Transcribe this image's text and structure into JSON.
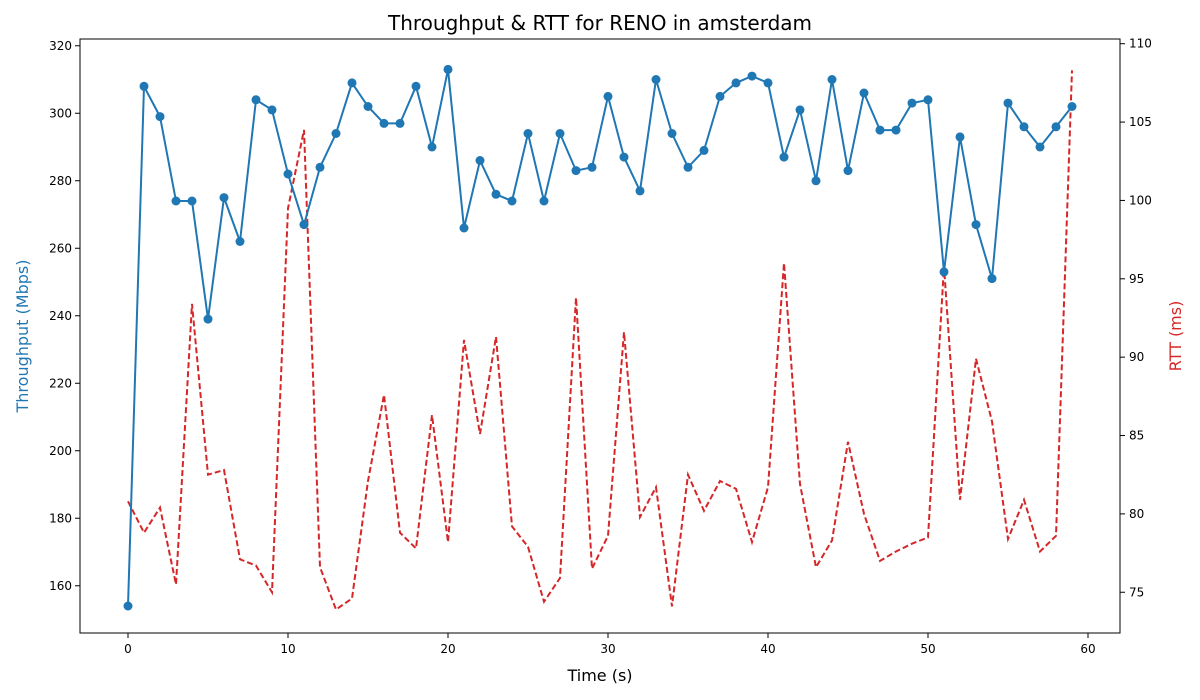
{
  "chart_data": {
    "type": "line",
    "title": "Throughput & RTT for RENO in amsterdam",
    "xlabel": "Time (s)",
    "ylabel_left": "Throughput (Mbps)",
    "ylabel_right": "RTT (ms)",
    "xlim": [
      -3,
      62
    ],
    "ylim_left": [
      146,
      322
    ],
    "ylim_right": [
      72.4,
      110.3
    ],
    "xticks": [
      "0",
      "10",
      "20",
      "30",
      "40",
      "50",
      "60"
    ],
    "yticks_left": [
      "160",
      "180",
      "200",
      "220",
      "240",
      "260",
      "280",
      "300",
      "320"
    ],
    "yticks_right": [
      "75",
      "80",
      "85",
      "90",
      "95",
      "100",
      "105",
      "110"
    ],
    "grid": false,
    "colors": {
      "throughput": "#1f77b4",
      "rtt": "#d62728"
    },
    "x": [
      0,
      1,
      2,
      3,
      4,
      5,
      6,
      7,
      8,
      9,
      10,
      11,
      12,
      13,
      14,
      15,
      16,
      17,
      18,
      19,
      20,
      21,
      22,
      23,
      24,
      25,
      26,
      27,
      28,
      29,
      30,
      31,
      32,
      33,
      34,
      35,
      36,
      37,
      38,
      39,
      40,
      41,
      42,
      43,
      44,
      45,
      46,
      47,
      48,
      49,
      50,
      51,
      52,
      53,
      54,
      55,
      56,
      57,
      58,
      59
    ],
    "series": [
      {
        "axis": "left",
        "style": "solid-markers",
        "values": [
          154,
          308,
          299,
          274,
          274,
          239,
          275,
          262,
          304,
          301,
          282,
          267,
          284,
          294,
          309,
          302,
          297,
          297,
          308,
          290,
          313,
          266,
          286,
          276,
          274,
          294,
          274,
          294,
          283,
          284,
          305,
          287,
          277,
          310,
          294,
          284,
          289,
          305,
          309,
          311,
          309,
          287,
          301,
          280,
          310,
          283,
          306,
          295,
          295,
          303,
          304,
          253,
          293,
          267,
          251,
          303,
          296,
          290,
          296,
          302
        ]
      },
      {
        "axis": "right",
        "style": "dashed",
        "values": [
          80.8,
          78.8,
          80.4,
          75.5,
          93.4,
          82.5,
          82.8,
          77.1,
          76.7,
          75.0,
          99.5,
          104.5,
          76.6,
          73.9,
          74.6,
          82.1,
          87.6,
          78.8,
          77.8,
          86.3,
          78.2,
          91.1,
          85.1,
          91.3,
          79.2,
          77.9,
          74.4,
          75.9,
          93.8,
          76.5,
          78.6,
          91.6,
          79.8,
          81.7,
          74.1,
          82.5,
          80.2,
          82.1,
          81.6,
          78.2,
          81.7,
          96.0,
          81.9,
          76.6,
          78.3,
          84.6,
          80.0,
          77.0,
          77.6,
          78.1,
          78.5,
          95.8,
          80.9,
          89.9,
          85.9,
          78.4,
          80.9,
          77.6,
          78.6,
          108.3
        ]
      }
    ]
  }
}
